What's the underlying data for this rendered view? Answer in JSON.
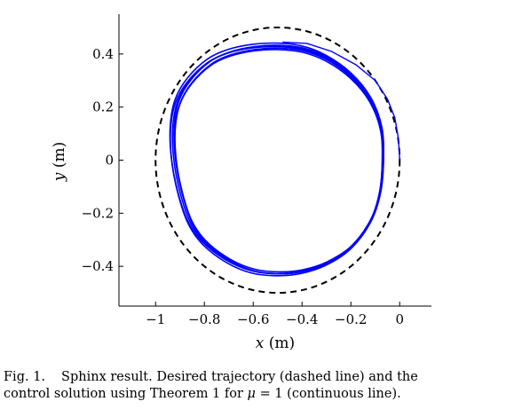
{
  "chart_data": {
    "type": "line",
    "xlabel": {
      "var": "x",
      "unit": "(m)"
    },
    "ylabel": {
      "var": "y",
      "unit": "(m)"
    },
    "xlim": [
      -1.15,
      0.13
    ],
    "ylim": [
      -0.55,
      0.55
    ],
    "xticks": [
      -1,
      -0.8,
      -0.6,
      -0.4,
      -0.2,
      0
    ],
    "xtick_labels": [
      "−1",
      "−0.8",
      "−0.6",
      "−0.4",
      "−0.2",
      "0"
    ],
    "yticks": [
      -0.4,
      -0.2,
      0,
      0.2,
      0.4
    ],
    "ytick_labels": [
      "−0.4",
      "−0.2",
      "0",
      "0.2",
      "0.4"
    ],
    "grid": false,
    "series": [
      {
        "style": "dashed",
        "color": "#000000",
        "shape": "circle",
        "center": [
          -0.5,
          0
        ],
        "radius": 0.5
      },
      {
        "style": "solid",
        "color": "#0000ff",
        "shape": "closed-curve-multiple-loops",
        "x": [
          -0.5,
          -0.4,
          -0.3,
          -0.2,
          -0.12,
          -0.075,
          -0.068,
          -0.08,
          -0.12,
          -0.2,
          -0.3,
          -0.4,
          -0.5,
          -0.6,
          -0.7,
          -0.8,
          -0.86,
          -0.9,
          -0.925,
          -0.93,
          -0.91,
          -0.86,
          -0.78,
          -0.7,
          -0.6,
          -0.5
        ],
        "y": [
          0.43,
          0.42,
          0.385,
          0.32,
          0.23,
          0.12,
          0.0,
          -0.12,
          -0.23,
          -0.33,
          -0.39,
          -0.42,
          -0.428,
          -0.418,
          -0.38,
          -0.31,
          -0.23,
          -0.12,
          0.0,
          0.12,
          0.22,
          0.3,
          0.37,
          0.405,
          0.425,
          0.43
        ]
      },
      {
        "style": "solid",
        "color": "#0000ff",
        "shape": "transient-segment",
        "x": [
          0.0,
          -0.005,
          -0.02,
          -0.05,
          -0.1,
          -0.18,
          -0.28,
          -0.38,
          -0.48
        ],
        "y": [
          0.0,
          0.08,
          0.16,
          0.23,
          0.3,
          0.36,
          0.41,
          0.44,
          0.445
        ]
      }
    ]
  },
  "caption": {
    "fig_label": "Fig. 1.",
    "text_line1": "Sphinx result. Desired trajectory (dashed line) and the",
    "text_line2_a": "control solution using Theorem 1 for ",
    "mu_symbol": "μ",
    "text_line2_b": " = 1 (continuous line)."
  }
}
